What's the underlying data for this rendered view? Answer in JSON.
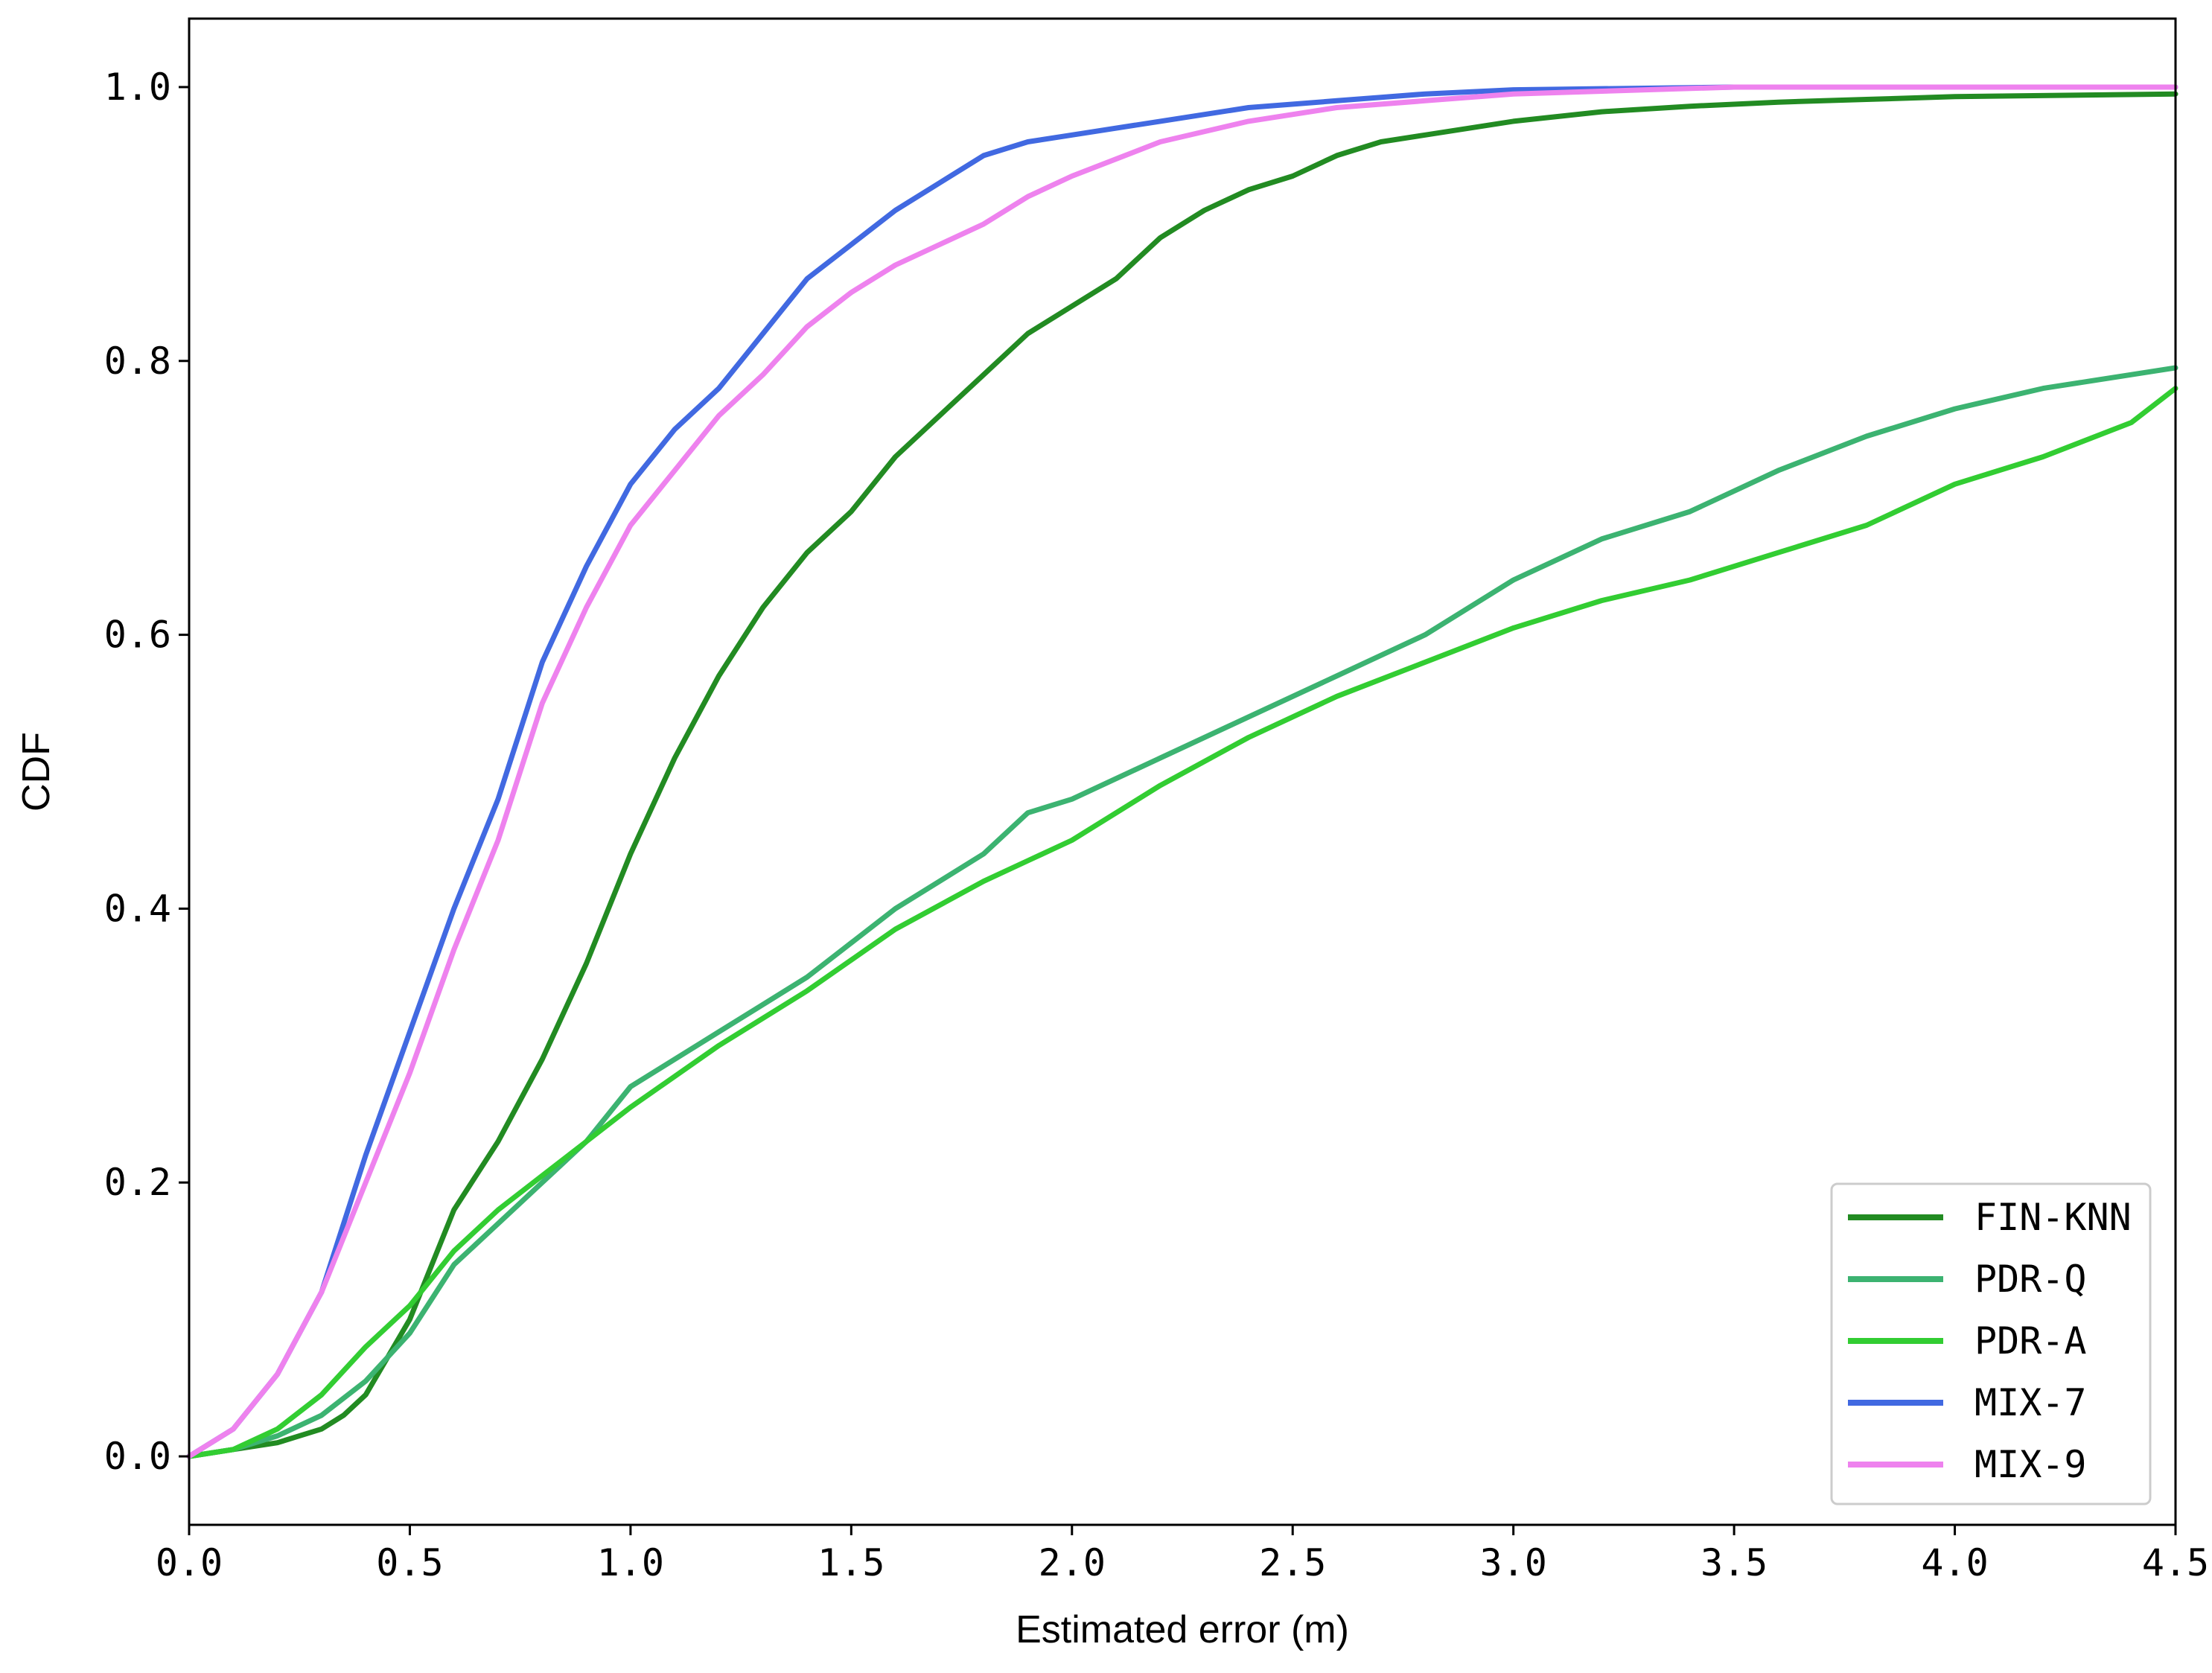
{
  "chart_data": {
    "type": "line",
    "title": "",
    "xlabel": "Estimated error (m)",
    "ylabel": "CDF",
    "xlim": [
      0.0,
      4.5
    ],
    "ylim": [
      -0.05,
      1.05
    ],
    "xticks": [
      0.0,
      0.5,
      1.0,
      1.5,
      2.0,
      2.5,
      3.0,
      3.5,
      4.0,
      4.5
    ],
    "xtick_labels": [
      "0.0",
      "0.5",
      "1.0",
      "1.5",
      "2.0",
      "2.5",
      "3.0",
      "3.5",
      "4.0",
      "4.5"
    ],
    "yticks": [
      0.0,
      0.2,
      0.4,
      0.6,
      0.8,
      1.0
    ],
    "ytick_labels": [
      "0.0",
      "0.2",
      "0.4",
      "0.6",
      "0.8",
      "1.0"
    ],
    "grid": false,
    "legend_position": "bottom-right",
    "series": [
      {
        "name": "FIN-KNN",
        "color": "#228b22",
        "x": [
          0.0,
          0.1,
          0.2,
          0.3,
          0.35,
          0.4,
          0.5,
          0.6,
          0.7,
          0.8,
          0.9,
          1.0,
          1.1,
          1.2,
          1.3,
          1.4,
          1.5,
          1.6,
          1.7,
          1.8,
          1.9,
          2.0,
          2.1,
          2.2,
          2.3,
          2.4,
          2.5,
          2.6,
          2.7,
          2.8,
          3.0,
          3.2,
          3.4,
          3.6,
          3.8,
          4.0,
          4.5
        ],
        "y": [
          0.0,
          0.005,
          0.01,
          0.02,
          0.03,
          0.045,
          0.1,
          0.18,
          0.23,
          0.29,
          0.36,
          0.44,
          0.51,
          0.57,
          0.62,
          0.66,
          0.69,
          0.73,
          0.76,
          0.79,
          0.82,
          0.84,
          0.86,
          0.89,
          0.91,
          0.925,
          0.935,
          0.95,
          0.96,
          0.965,
          0.975,
          0.982,
          0.986,
          0.989,
          0.991,
          0.993,
          0.995
        ]
      },
      {
        "name": "PDR-Q",
        "color": "#3cb371",
        "x": [
          0.0,
          0.1,
          0.2,
          0.3,
          0.4,
          0.5,
          0.6,
          0.7,
          0.8,
          0.9,
          1.0,
          1.2,
          1.4,
          1.6,
          1.8,
          1.9,
          2.0,
          2.2,
          2.4,
          2.6,
          2.8,
          3.0,
          3.2,
          3.4,
          3.6,
          3.8,
          4.0,
          4.2,
          4.4,
          4.5
        ],
        "y": [
          0.0,
          0.005,
          0.015,
          0.03,
          0.055,
          0.09,
          0.14,
          0.17,
          0.2,
          0.23,
          0.27,
          0.31,
          0.35,
          0.4,
          0.44,
          0.47,
          0.48,
          0.51,
          0.54,
          0.57,
          0.6,
          0.64,
          0.67,
          0.69,
          0.72,
          0.745,
          0.765,
          0.78,
          0.79,
          0.795
        ]
      },
      {
        "name": "PDR-A",
        "color": "#32cd32",
        "x": [
          0.0,
          0.1,
          0.2,
          0.3,
          0.4,
          0.5,
          0.6,
          0.7,
          0.8,
          0.9,
          1.0,
          1.2,
          1.4,
          1.6,
          1.8,
          1.9,
          2.0,
          2.2,
          2.4,
          2.6,
          2.8,
          3.0,
          3.2,
          3.4,
          3.6,
          3.8,
          4.0,
          4.2,
          4.4,
          4.5
        ],
        "y": [
          0.0,
          0.005,
          0.02,
          0.045,
          0.08,
          0.11,
          0.15,
          0.18,
          0.205,
          0.23,
          0.255,
          0.3,
          0.34,
          0.385,
          0.42,
          0.435,
          0.45,
          0.49,
          0.525,
          0.555,
          0.58,
          0.605,
          0.625,
          0.64,
          0.66,
          0.68,
          0.71,
          0.73,
          0.755,
          0.78
        ]
      },
      {
        "name": "MIX-7",
        "color": "#4169e1",
        "x": [
          0.0,
          0.1,
          0.2,
          0.3,
          0.4,
          0.5,
          0.6,
          0.7,
          0.8,
          0.9,
          1.0,
          1.1,
          1.2,
          1.3,
          1.4,
          1.5,
          1.6,
          1.7,
          1.8,
          1.9,
          2.0,
          2.2,
          2.4,
          2.6,
          2.8,
          3.0,
          3.5,
          4.0,
          4.5
        ],
        "y": [
          0.0,
          0.02,
          0.06,
          0.12,
          0.22,
          0.31,
          0.4,
          0.48,
          0.58,
          0.65,
          0.71,
          0.75,
          0.78,
          0.82,
          0.86,
          0.885,
          0.91,
          0.93,
          0.95,
          0.96,
          0.965,
          0.975,
          0.985,
          0.99,
          0.995,
          0.998,
          1.0,
          1.0,
          1.0
        ]
      },
      {
        "name": "MIX-9",
        "color": "#ee82ee",
        "x": [
          0.0,
          0.1,
          0.2,
          0.3,
          0.4,
          0.5,
          0.6,
          0.7,
          0.8,
          0.9,
          1.0,
          1.1,
          1.2,
          1.3,
          1.4,
          1.5,
          1.6,
          1.7,
          1.8,
          1.9,
          2.0,
          2.2,
          2.4,
          2.6,
          2.8,
          3.0,
          3.5,
          4.0,
          4.5
        ],
        "y": [
          0.0,
          0.02,
          0.06,
          0.12,
          0.2,
          0.28,
          0.37,
          0.45,
          0.55,
          0.62,
          0.68,
          0.72,
          0.76,
          0.79,
          0.825,
          0.85,
          0.87,
          0.885,
          0.9,
          0.92,
          0.935,
          0.96,
          0.975,
          0.985,
          0.99,
          0.995,
          1.0,
          1.0,
          1.0
        ]
      }
    ]
  }
}
